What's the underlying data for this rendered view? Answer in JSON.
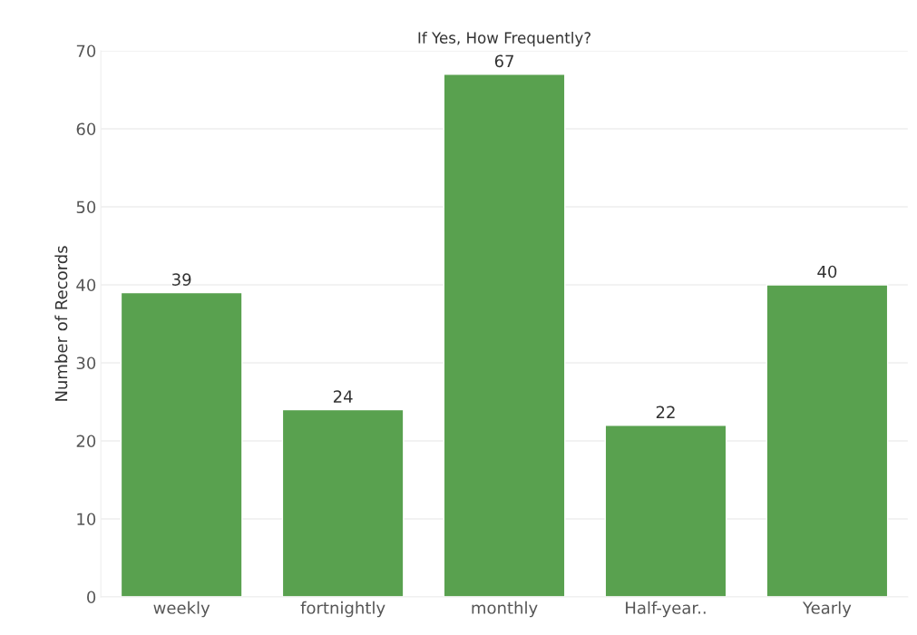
{
  "chart_data": {
    "type": "bar",
    "title": "If Yes, How Frequently?",
    "ylabel": "Number of Records",
    "categories": [
      "weekly",
      "fortnightly",
      "monthly",
      "Half-year..",
      "Yearly"
    ],
    "values": [
      39,
      24,
      67,
      22,
      40
    ],
    "color": "#59a14f",
    "ylim": [
      0,
      70
    ],
    "yticks": [
      0,
      10,
      20,
      30,
      40,
      50,
      60,
      70
    ],
    "grid": "y",
    "data_labels": true
  }
}
